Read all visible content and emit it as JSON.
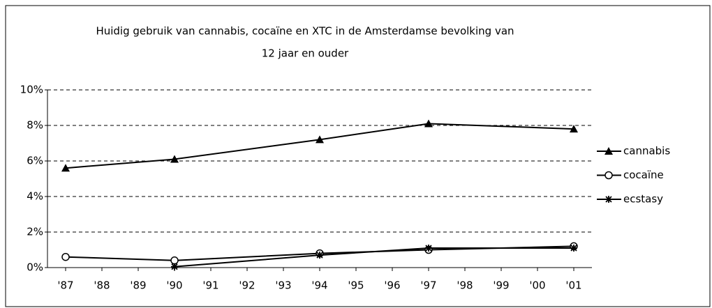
{
  "chart_data": {
    "type": "line",
    "title": [
      "Huidig gebruik van cannabis, cocaïne en XTC in de Amsterdamse bevolking van",
      "12 jaar en ouder"
    ],
    "x": [
      1987,
      1990,
      1994,
      1997,
      2001
    ],
    "xlim": [
      1986.5,
      2001.5
    ],
    "xticks": [
      {
        "value": 1987,
        "label": "'87"
      },
      {
        "value": 1988,
        "label": "'88"
      },
      {
        "value": 1989,
        "label": "'89"
      },
      {
        "value": 1990,
        "label": "'90"
      },
      {
        "value": 1991,
        "label": "'91"
      },
      {
        "value": 1992,
        "label": "'92"
      },
      {
        "value": 1993,
        "label": "'93"
      },
      {
        "value": 1994,
        "label": "'94"
      },
      {
        "value": 1995,
        "label": "'95"
      },
      {
        "value": 1996,
        "label": "'96"
      },
      {
        "value": 1997,
        "label": "'97"
      },
      {
        "value": 1998,
        "label": "'98"
      },
      {
        "value": 1999,
        "label": "'99"
      },
      {
        "value": 2000,
        "label": "'00"
      },
      {
        "value": 2001,
        "label": "'01"
      }
    ],
    "ylim": [
      0,
      10
    ],
    "yticks": [
      {
        "value": 0,
        "label": "0%"
      },
      {
        "value": 2,
        "label": "2%"
      },
      {
        "value": 4,
        "label": "4%"
      },
      {
        "value": 6,
        "label": "6%"
      },
      {
        "value": 8,
        "label": "8%"
      },
      {
        "value": 10,
        "label": "10%"
      }
    ],
    "grid": true,
    "legend": "right",
    "series": [
      {
        "name": "cannabis",
        "color": "#000000",
        "marker": "triangle",
        "values": [
          5.6,
          6.1,
          7.2,
          8.1,
          7.8
        ]
      },
      {
        "name": "cocaïne",
        "color": "#000000",
        "marker": "circle",
        "values": [
          0.6,
          0.4,
          0.8,
          1.0,
          1.2
        ]
      },
      {
        "name": "ecstasy",
        "color": "#000000",
        "marker": "asterisk",
        "values": [
          null,
          0.05,
          0.7,
          1.1,
          1.1
        ]
      }
    ]
  }
}
